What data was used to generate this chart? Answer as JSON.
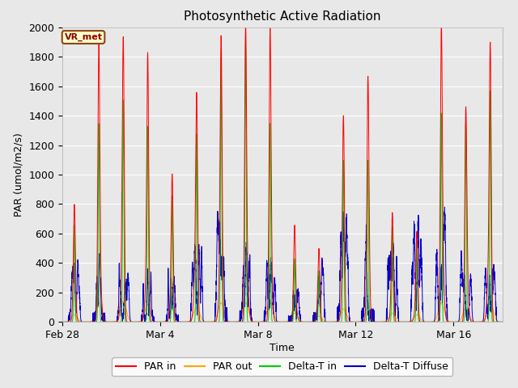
{
  "title": "Photosynthetic Active Radiation",
  "xlabel": "Time",
  "ylabel": "PAR (umol/m2/s)",
  "ylim": [
    0,
    2000
  ],
  "background_color": "#e8e8e8",
  "plot_bg_color": "#e8e8e8",
  "label_box_text": "VR_met",
  "label_box_facecolor": "#ffffcc",
  "label_box_edgecolor": "#8b4513",
  "legend_entries": [
    "PAR in",
    "PAR out",
    "Delta-T in",
    "Delta-T Diffuse"
  ],
  "legend_colors": [
    "#ff0000",
    "#ffa500",
    "#00cc00",
    "#0000cc"
  ],
  "x_tick_labels": [
    "Feb 28",
    "Mar 4",
    "Mar 8",
    "Mar 12",
    "Mar 16"
  ],
  "x_tick_positions": [
    0,
    4,
    8,
    12,
    16
  ],
  "num_days": 19,
  "figsize": [
    6.4,
    4.8
  ],
  "dpi": 100
}
